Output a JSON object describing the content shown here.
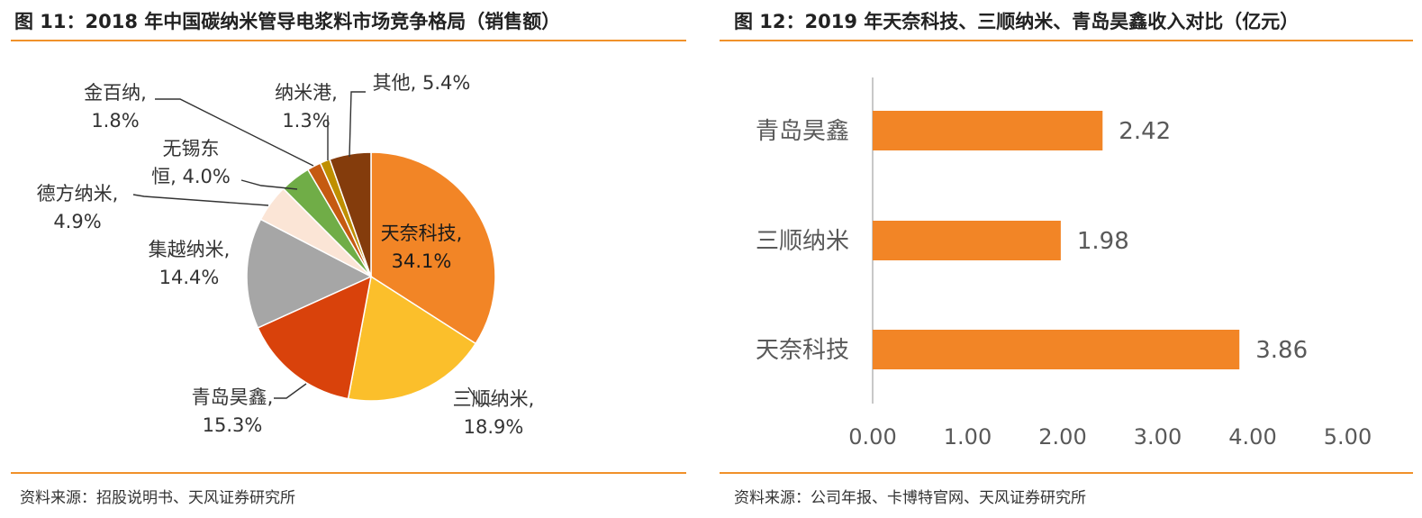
{
  "left": {
    "title": "图 11：2018 年中国碳纳米管导电浆料市场竞争格局（销售额）",
    "source": "资料来源：招股说明书、天风证券研究所"
  },
  "right": {
    "title": "图 12：2019 年天奈科技、三顺纳米、青岛昊鑫收入对比（亿元）",
    "source": "资料来源：公司年报、卡博特官网、天风证券研究所"
  },
  "chart_data": [
    {
      "type": "pie",
      "title": "2018 年中国碳纳米管导电浆料市场竞争格局（销售额）",
      "unit": "%",
      "slices": [
        {
          "name": "天奈科技",
          "value": 34.1,
          "label_lines": [
            "天奈科技,",
            "34.1%"
          ],
          "color": "#f28526"
        },
        {
          "name": "三顺纳米",
          "value": 18.9,
          "label_lines": [
            "三顺纳米,",
            "18.9%"
          ],
          "color": "#fbbf2b"
        },
        {
          "name": "青岛昊鑫",
          "value": 15.3,
          "label_lines": [
            "青岛昊鑫,",
            "15.3%"
          ],
          "color": "#d9420b"
        },
        {
          "name": "集越纳米",
          "value": 14.4,
          "label_lines": [
            "集越纳米,",
            "14.4%"
          ],
          "color": "#a6a6a6"
        },
        {
          "name": "德方纳米",
          "value": 4.9,
          "label_lines": [
            "德方纳米,",
            "4.9%"
          ],
          "color": "#fbe5d6"
        },
        {
          "name": "无锡东恒",
          "value": 4.0,
          "label_lines": [
            "无锡东",
            "恒, 4.0%"
          ],
          "color": "#70ad47"
        },
        {
          "name": "金百纳",
          "value": 1.8,
          "label_lines": [
            "金百纳,",
            "1.8%"
          ],
          "color": "#c55a11"
        },
        {
          "name": "纳米港",
          "value": 1.3,
          "label_lines": [
            "纳米港,",
            "1.3%"
          ],
          "color": "#bf8f00"
        },
        {
          "name": "其他",
          "value": 5.4,
          "label_lines": [
            "其他, 5.4%"
          ],
          "color": "#843c0c"
        }
      ]
    },
    {
      "type": "bar",
      "orientation": "horizontal",
      "title": "2019 年天奈科技、三顺纳米、青岛昊鑫收入对比（亿元）",
      "categories": [
        "青岛昊鑫",
        "三顺纳米",
        "天奈科技"
      ],
      "values": [
        2.42,
        1.98,
        3.86
      ],
      "value_labels": [
        "2.42",
        "1.98",
        "3.86"
      ],
      "xlim": [
        0,
        5
      ],
      "xticks": [
        "0.00",
        "1.00",
        "2.00",
        "3.00",
        "4.00",
        "5.00"
      ],
      "bar_color": "#f28526",
      "grid": false
    }
  ]
}
